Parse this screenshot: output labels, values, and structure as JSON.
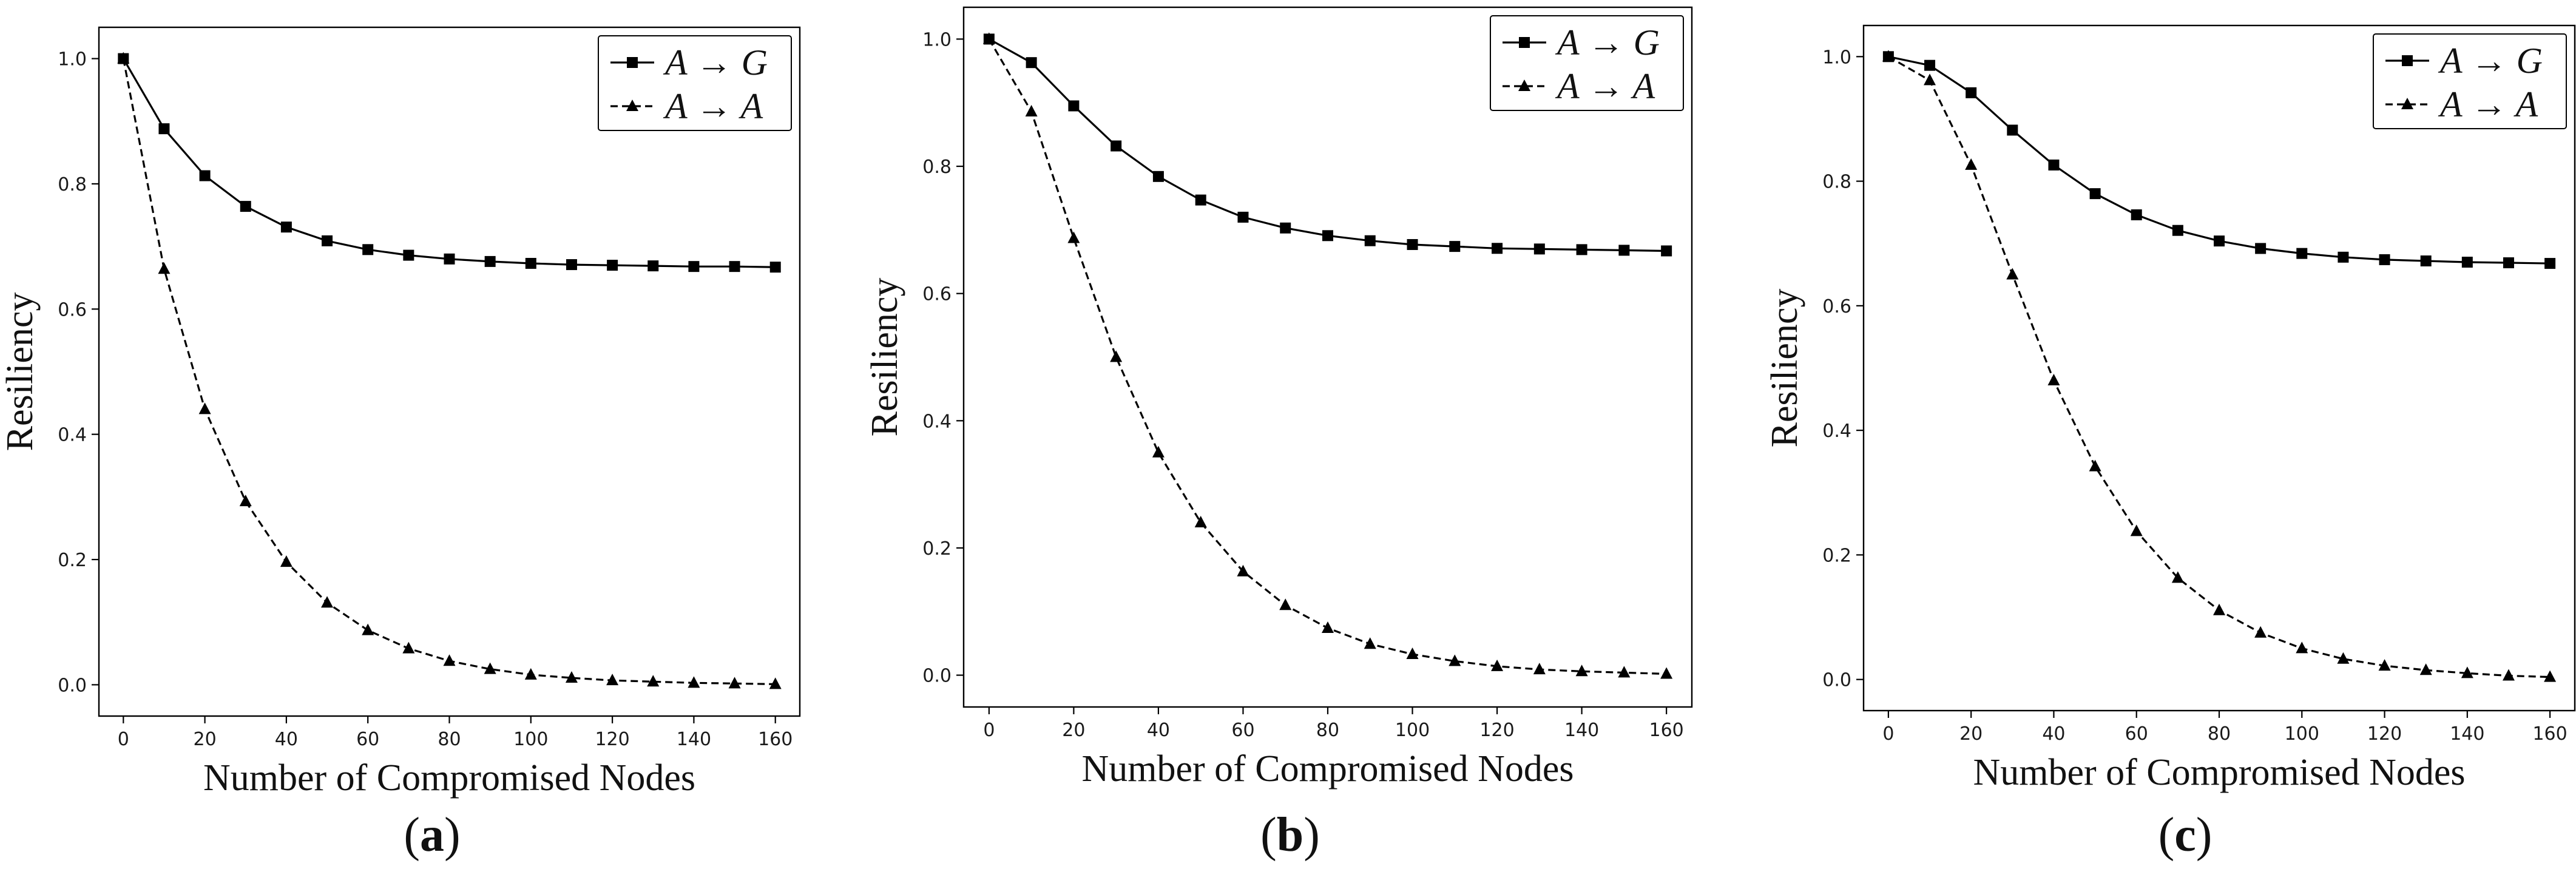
{
  "figure": {
    "colors": {
      "axis": "#000000",
      "series_solid": "#000000",
      "series_dashed": "#000000",
      "background": "#ffffff"
    }
  },
  "chart_data": [
    {
      "type": "line",
      "panel_label": "a",
      "xlabel": "Number of Compromised Nodes",
      "ylabel": "Resiliency",
      "xlim": [
        -6,
        166
      ],
      "ylim": [
        -0.05,
        1.05
      ],
      "xticks": [
        0,
        20,
        40,
        60,
        80,
        100,
        120,
        140,
        160
      ],
      "yticks": [
        0.0,
        0.2,
        0.4,
        0.6,
        0.8,
        1.0
      ],
      "ytick_labels": [
        "0.0",
        "0.2",
        "0.4",
        "0.6",
        "0.8",
        "1.0"
      ],
      "legend_position": "top-right",
      "x": [
        0,
        10,
        20,
        30,
        40,
        50,
        60,
        70,
        80,
        90,
        100,
        110,
        120,
        130,
        140,
        150,
        160
      ],
      "series": [
        {
          "name": "A → G",
          "style": "solid",
          "marker": "square",
          "values": [
            1.0,
            0.888,
            0.813,
            0.764,
            0.731,
            0.709,
            0.695,
            0.686,
            0.68,
            0.676,
            0.673,
            0.671,
            0.67,
            0.669,
            0.668,
            0.668,
            0.667
          ]
        },
        {
          "name": "A → A",
          "style": "dashed",
          "marker": "triangle",
          "values": [
            1.0,
            0.664,
            0.44,
            0.293,
            0.196,
            0.131,
            0.087,
            0.058,
            0.038,
            0.025,
            0.016,
            0.011,
            0.007,
            0.005,
            0.003,
            0.002,
            0.001
          ]
        }
      ]
    },
    {
      "type": "line",
      "panel_label": "b",
      "xlabel": "Number of Compromised Nodes",
      "ylabel": "Resiliency",
      "xlim": [
        -6,
        166
      ],
      "ylim": [
        -0.05,
        1.05
      ],
      "xticks": [
        0,
        20,
        40,
        60,
        80,
        100,
        120,
        140,
        160
      ],
      "yticks": [
        0.0,
        0.2,
        0.4,
        0.6,
        0.8,
        1.0
      ],
      "ytick_labels": [
        "0.0",
        "0.2",
        "0.4",
        "0.6",
        "0.8",
        "1.0"
      ],
      "legend_position": "top-right",
      "x": [
        0,
        10,
        20,
        30,
        40,
        50,
        60,
        70,
        80,
        90,
        100,
        110,
        120,
        130,
        140,
        150,
        160
      ],
      "series": [
        {
          "name": "A → G",
          "style": "solid",
          "marker": "square",
          "values": [
            1.0,
            0.963,
            0.895,
            0.832,
            0.784,
            0.747,
            0.72,
            0.703,
            0.691,
            0.683,
            0.677,
            0.674,
            0.671,
            0.67,
            0.669,
            0.668,
            0.667
          ]
        },
        {
          "name": "A → A",
          "style": "dashed",
          "marker": "triangle",
          "values": [
            1.0,
            0.886,
            0.687,
            0.5,
            0.35,
            0.24,
            0.163,
            0.11,
            0.074,
            0.049,
            0.033,
            0.022,
            0.014,
            0.009,
            0.006,
            0.004,
            0.002
          ]
        }
      ]
    },
    {
      "type": "line",
      "panel_label": "c",
      "xlabel": "Number of Compromised Nodes",
      "ylabel": "Resiliency",
      "xlim": [
        -6,
        166
      ],
      "ylim": [
        -0.05,
        1.05
      ],
      "xticks": [
        0,
        20,
        40,
        60,
        80,
        100,
        120,
        140,
        160
      ],
      "yticks": [
        0.0,
        0.2,
        0.4,
        0.6,
        0.8,
        1.0
      ],
      "ytick_labels": [
        "0.0",
        "0.2",
        "0.4",
        "0.6",
        "0.8",
        "1.0"
      ],
      "legend_position": "top-right",
      "x": [
        0,
        10,
        20,
        30,
        40,
        50,
        60,
        70,
        80,
        90,
        100,
        110,
        120,
        130,
        140,
        150,
        160
      ],
      "series": [
        {
          "name": "A → G",
          "style": "solid",
          "marker": "square",
          "values": [
            1.0,
            0.986,
            0.942,
            0.882,
            0.826,
            0.78,
            0.746,
            0.721,
            0.704,
            0.692,
            0.684,
            0.678,
            0.674,
            0.672,
            0.67,
            0.669,
            0.668
          ]
        },
        {
          "name": "A → A",
          "style": "dashed",
          "marker": "triangle",
          "values": [
            1.0,
            0.962,
            0.826,
            0.65,
            0.48,
            0.342,
            0.238,
            0.163,
            0.111,
            0.075,
            0.05,
            0.033,
            0.022,
            0.015,
            0.01,
            0.006,
            0.004
          ]
        }
      ]
    }
  ]
}
